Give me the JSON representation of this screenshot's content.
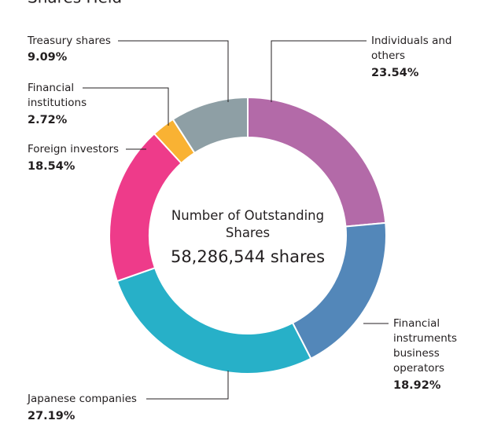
{
  "chart_data": {
    "type": "donut",
    "title": "Shares Held",
    "center_label": "Number of Outstanding Shares",
    "center_value": "58,286,544 shares",
    "categories": [
      "Individuals and others",
      "Financial instruments business operators",
      "Japanese companies",
      "Foreign investors",
      "Financial institutions",
      "Treasury shares"
    ],
    "values": [
      23.54,
      18.92,
      27.19,
      18.54,
      2.72,
      9.09
    ],
    "value_labels": [
      "23.54%",
      "18.92%",
      "27.19%",
      "18.54%",
      "2.72%",
      "9.09%"
    ],
    "colors": [
      "#b36aa8",
      "#5387b9",
      "#27b0c8",
      "#ee3b8a",
      "#f9b233",
      "#8e9fa5"
    ]
  }
}
